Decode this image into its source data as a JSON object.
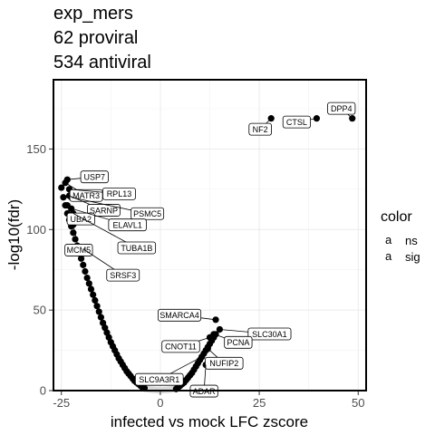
{
  "title_lines": [
    "exp_mers",
    "62 proviral",
    "534 antiviral"
  ],
  "chart_data": {
    "type": "scatter",
    "xlabel": "infected vs mock LFC zscore",
    "ylabel": "-log10(fdr)",
    "xlim": [
      -27,
      52
    ],
    "ylim": [
      0,
      193
    ],
    "x_ticks": [
      -25,
      0,
      25,
      50
    ],
    "y_ticks": [
      0,
      50,
      100,
      150
    ],
    "grid": true,
    "legend": {
      "title": "color",
      "position": "right",
      "entries": [
        {
          "key": "a",
          "label": "ns",
          "color": "#d9d9d9"
        },
        {
          "key": "a",
          "label": "sig",
          "color": "#000000"
        }
      ]
    },
    "labeled_points": [
      {
        "gene": "DPP4",
        "x": 48.5,
        "y": 169
      },
      {
        "gene": "CTSL",
        "x": 39.5,
        "y": 169
      },
      {
        "gene": "NF2",
        "x": 28,
        "y": 169
      },
      {
        "gene": "USP7",
        "x": -23.5,
        "y": 131
      },
      {
        "gene": "MATR3",
        "x": -24,
        "y": 129
      },
      {
        "gene": "RPL13",
        "x": -23,
        "y": 125
      },
      {
        "gene": "SARNP",
        "x": -23,
        "y": 121
      },
      {
        "gene": "PSMC5",
        "x": -22.5,
        "y": 120
      },
      {
        "gene": "UBA2",
        "x": -23.5,
        "y": 115
      },
      {
        "gene": "ELAVL1",
        "x": -22.5,
        "y": 113
      },
      {
        "gene": "TUBA1B",
        "x": -22,
        "y": 110
      },
      {
        "gene": "MCM5",
        "x": -22,
        "y": 103
      },
      {
        "gene": "SRSF3",
        "x": -19.5,
        "y": 88
      },
      {
        "gene": "SMARCA4",
        "x": 14,
        "y": 44
      },
      {
        "gene": "SLC30A1",
        "x": 15,
        "y": 38
      },
      {
        "gene": "PCNA",
        "x": 13.5,
        "y": 35
      },
      {
        "gene": "CNOT11",
        "x": 12.5,
        "y": 33
      },
      {
        "gene": "NUFIP2",
        "x": 12,
        "y": 26
      },
      {
        "gene": "SLC9A3R1",
        "x": 10.5,
        "y": 21
      },
      {
        "gene": "ADAR",
        "x": 11.5,
        "y": 16
      }
    ],
    "series": [
      {
        "name": "sig",
        "color": "#000000",
        "x": [
          -25,
          -24.5,
          -24,
          -23.5,
          -23,
          -22.5,
          -22,
          -21.5,
          -21,
          -20.5,
          -20,
          -19.5,
          -19,
          -18.5,
          -18,
          -17.5,
          -17,
          -16.5,
          -16,
          -15.5,
          -15,
          -14.5,
          -14,
          -13.5,
          -13,
          -12.5,
          -12,
          -11.5,
          -11,
          -10.5,
          -10,
          -9.5,
          -9,
          -8.5,
          -8,
          -7.5,
          -7,
          -6.5,
          -6,
          -5.5,
          -5,
          -4.5,
          -4,
          4,
          4.5,
          5,
          5.5,
          6,
          6.5,
          7,
          7.5,
          8,
          8.5,
          9,
          9.5,
          10,
          10.5,
          11,
          11.5,
          12,
          12.5,
          13,
          13.5,
          14
        ],
        "y": [
          126,
          120,
          115,
          110,
          106,
          102,
          98,
          94,
          90,
          86,
          82,
          78,
          74,
          70,
          66.5,
          63,
          59.5,
          56,
          52.5,
          49,
          45.5,
          42,
          39,
          36,
          33,
          30,
          27.5,
          25,
          22.5,
          20,
          18,
          16,
          14,
          12,
          10.5,
          9,
          7.5,
          6,
          5,
          4,
          3,
          2,
          1.5,
          1,
          2,
          3,
          4,
          5,
          6.5,
          8,
          9.5,
          11,
          13,
          15,
          17,
          19,
          21,
          23,
          25,
          27,
          29,
          31,
          33,
          35
        ]
      },
      {
        "name": "ns",
        "color": "#d9d9d9",
        "x": [
          -4,
          -3.5,
          -3,
          -2.5,
          -2,
          -1.5,
          -1,
          -0.5,
          0,
          0.5,
          1,
          1.5,
          2,
          2.5,
          3,
          3.5,
          4
        ],
        "y": [
          1.2,
          1,
          0.8,
          0.6,
          0.5,
          0.4,
          0.3,
          0.2,
          0.1,
          0.2,
          0.3,
          0.4,
          0.5,
          0.6,
          0.8,
          1,
          1.2
        ]
      }
    ]
  }
}
